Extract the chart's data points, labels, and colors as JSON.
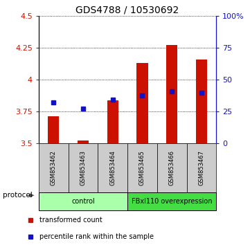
{
  "title": "GDS4788 / 10530692",
  "samples": [
    "GSM853462",
    "GSM853463",
    "GSM853464",
    "GSM853465",
    "GSM853466",
    "GSM853467"
  ],
  "red_bar_top": [
    3.71,
    3.52,
    3.84,
    4.13,
    4.27,
    4.16
  ],
  "red_bar_bottom": 3.5,
  "blue_y_left": [
    3.82,
    3.77,
    3.845,
    3.875,
    3.91,
    3.895
  ],
  "ylim_left": [
    3.5,
    4.5
  ],
  "ylim_right": [
    0,
    100
  ],
  "yticks_left": [
    3.5,
    3.75,
    4.0,
    4.25,
    4.5
  ],
  "ytick_labels_left": [
    "3.5",
    "3.75",
    "4",
    "4.25",
    "4.5"
  ],
  "yticks_right": [
    0,
    25,
    50,
    75,
    100
  ],
  "ytick_labels_right": [
    "0",
    "25",
    "50",
    "75",
    "100%"
  ],
  "bar_color": "#cc1100",
  "blue_color": "#1111cc",
  "protocol_groups": [
    {
      "label": "control",
      "indices": [
        0,
        1,
        2
      ],
      "color": "#aaffaa"
    },
    {
      "label": "FBxl110 overexpression",
      "indices": [
        3,
        4,
        5
      ],
      "color": "#44dd44"
    }
  ],
  "legend_items": [
    {
      "label": "transformed count",
      "color": "#cc1100"
    },
    {
      "label": "percentile rank within the sample",
      "color": "#1111cc"
    }
  ],
  "protocol_label": "protocol",
  "sample_box_color": "#cccccc",
  "title_fontsize": 10
}
